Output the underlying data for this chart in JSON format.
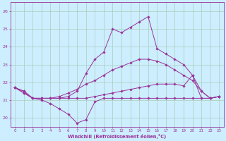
{
  "xlabel": "Windchill (Refroidissement éolien,°C)",
  "background_color": "#cceeff",
  "grid_color": "#aaccbb",
  "line_color": "#993399",
  "xlim": [
    -0.5,
    23.5
  ],
  "ylim": [
    19.5,
    26.5
  ],
  "yticks": [
    20,
    21,
    22,
    23,
    24,
    25,
    26
  ],
  "xticks": [
    0,
    1,
    2,
    3,
    4,
    5,
    6,
    7,
    8,
    9,
    10,
    11,
    12,
    13,
    14,
    15,
    16,
    17,
    18,
    19,
    20,
    21,
    22,
    23
  ],
  "curves": [
    {
      "x": [
        0,
        1,
        2,
        3,
        4,
        5,
        6,
        7,
        8,
        9,
        10,
        11,
        12,
        13,
        14,
        15,
        16,
        17,
        18,
        19,
        20,
        21,
        22,
        23
      ],
      "y": [
        21.7,
        21.5,
        21.1,
        21.1,
        21.1,
        21.1,
        21.2,
        21.5,
        22.5,
        23.3,
        23.7,
        25.0,
        24.8,
        25.1,
        25.4,
        25.7,
        23.9,
        23.6,
        23.3,
        23.0,
        22.4,
        21.5,
        21.1,
        21.2
      ]
    },
    {
      "x": [
        0,
        1,
        2,
        3,
        4,
        5,
        6,
        7,
        8,
        9,
        10,
        11,
        12,
        13,
        14,
        15,
        16,
        17,
        18,
        19,
        20,
        21,
        22,
        23
      ],
      "y": [
        21.7,
        21.4,
        21.1,
        21.1,
        21.1,
        21.2,
        21.4,
        21.6,
        21.9,
        22.1,
        22.4,
        22.7,
        22.9,
        23.1,
        23.3,
        23.3,
        23.2,
        23.0,
        22.7,
        22.4,
        22.1,
        21.5,
        21.1,
        21.2
      ]
    },
    {
      "x": [
        0,
        1,
        2,
        3,
        4,
        5,
        6,
        7,
        8,
        9,
        10,
        11,
        12,
        13,
        14,
        15,
        16,
        17,
        18,
        19,
        20,
        21,
        22,
        23
      ],
      "y": [
        21.7,
        21.4,
        21.1,
        21.1,
        21.1,
        21.1,
        21.1,
        21.1,
        21.1,
        21.2,
        21.3,
        21.4,
        21.5,
        21.6,
        21.7,
        21.8,
        21.9,
        21.9,
        21.9,
        21.8,
        22.4,
        21.1,
        21.1,
        21.2
      ]
    },
    {
      "x": [
        0,
        1,
        2,
        3,
        4,
        5,
        6,
        7,
        8,
        9,
        10,
        11,
        12,
        13,
        14,
        15,
        16,
        17,
        18,
        19,
        20,
        21,
        22,
        23
      ],
      "y": [
        21.7,
        21.5,
        21.1,
        21.0,
        20.8,
        20.5,
        20.2,
        19.7,
        19.9,
        20.9,
        21.1,
        21.1,
        21.1,
        21.1,
        21.1,
        21.1,
        21.1,
        21.1,
        21.1,
        21.1,
        21.1,
        21.1,
        21.1,
        21.2
      ]
    }
  ]
}
